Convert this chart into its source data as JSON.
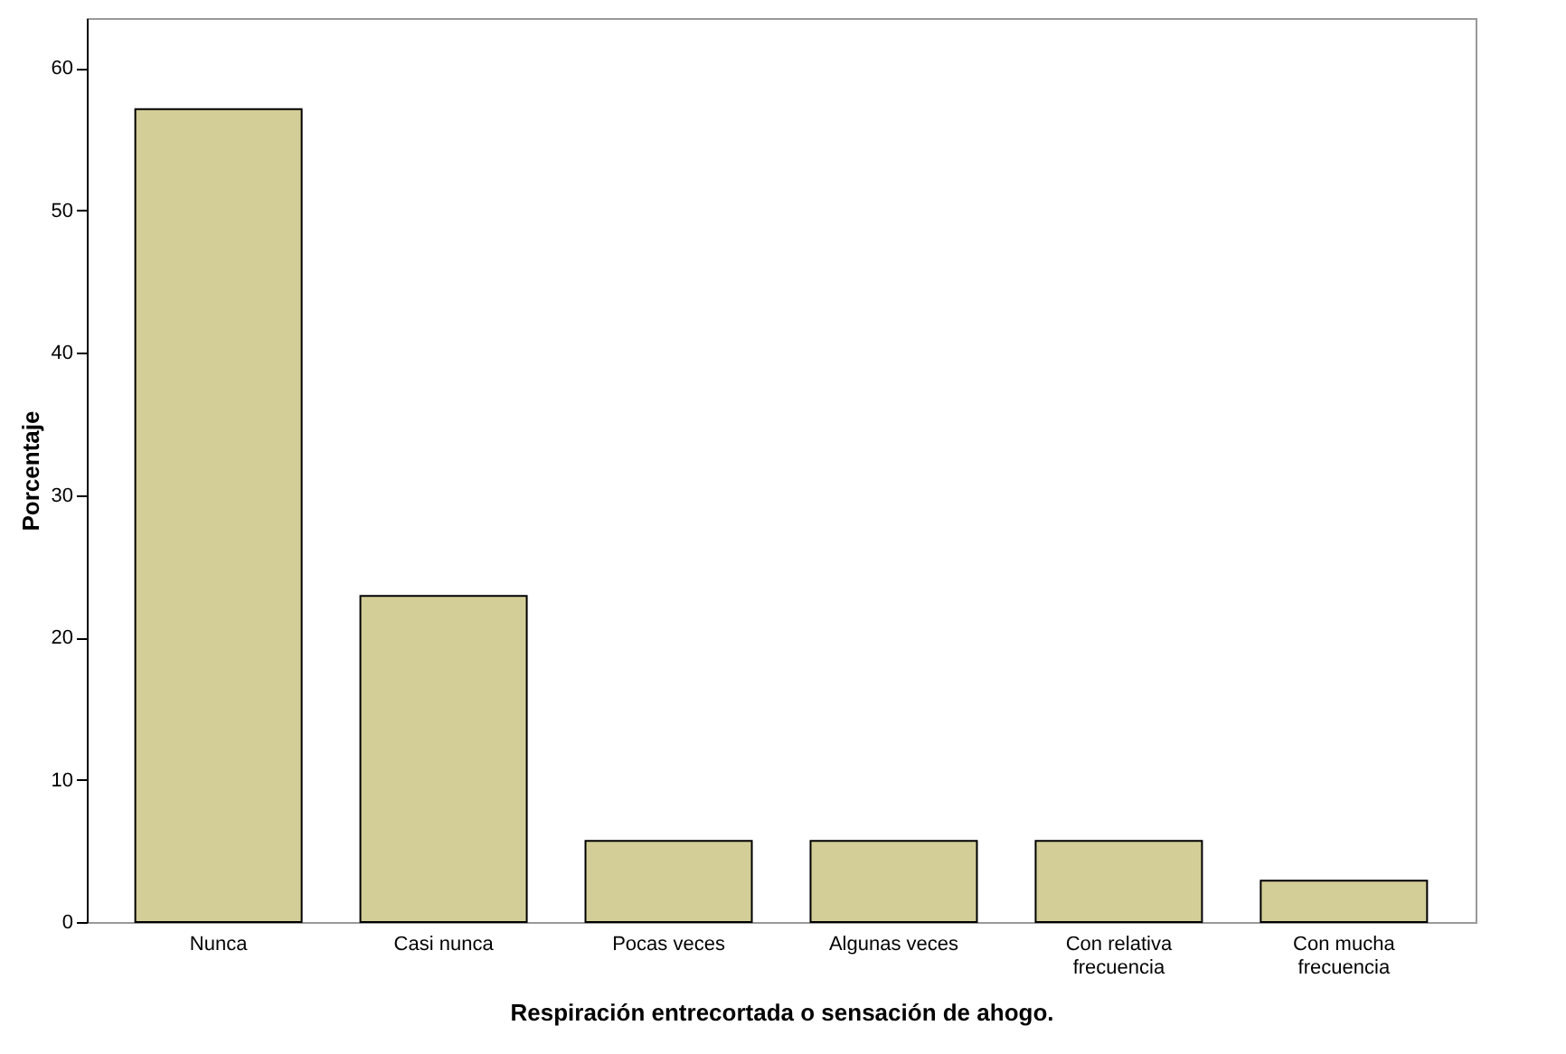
{
  "chart_data": {
    "type": "bar",
    "xlabel": "Respiración entrecortada o sensación de ahogo.",
    "ylabel": "Porcentaje",
    "categories": [
      "Nunca",
      "Casi nunca",
      "Pocas veces",
      "Algunas veces",
      "Con relativa frecuencia",
      "Con mucha frecuencia"
    ],
    "values": [
      57.1,
      22.9,
      5.7,
      5.7,
      5.7,
      2.9
    ],
    "color": "#d3ce97",
    "ylim": [
      0,
      63.5
    ],
    "yticks": [
      0,
      10,
      20,
      30,
      40,
      50,
      60
    ],
    "grid": false
  }
}
